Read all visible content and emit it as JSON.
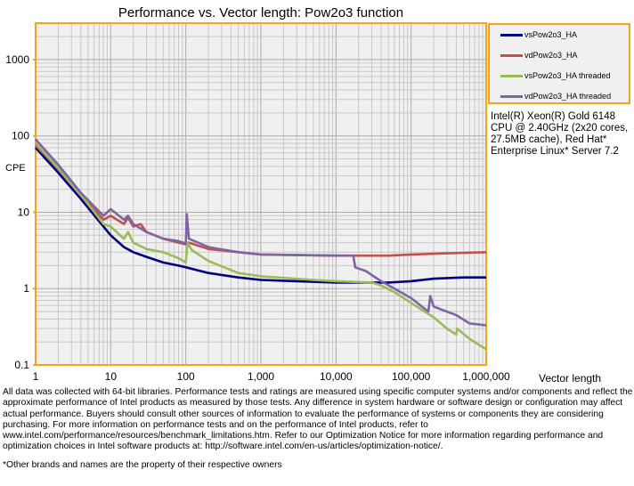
{
  "chart_data": {
    "type": "line",
    "title": "Performance vs. Vector length: Pow2o3  function",
    "xlabel": "Vector length",
    "ylabel": "CPE",
    "xscale": "log",
    "yscale": "log",
    "xlim": [
      1,
      1000000
    ],
    "ylim": [
      0.1,
      3000
    ],
    "grid": true,
    "legend_position": "right",
    "x_ticks": [
      "1",
      "10",
      "100",
      "1,000",
      "10,000",
      "100,000",
      "1,000,000"
    ],
    "y_ticks": [
      "0.1",
      "1",
      "10",
      "100",
      "1000"
    ],
    "series": [
      {
        "name": "vsPow2o3_HA",
        "color": "#000080",
        "points": [
          [
            1,
            70
          ],
          [
            2,
            33
          ],
          [
            4,
            15
          ],
          [
            8,
            6.5
          ],
          [
            10,
            5.0
          ],
          [
            15,
            3.5
          ],
          [
            20,
            3.0
          ],
          [
            30,
            2.6
          ],
          [
            50,
            2.2
          ],
          [
            80,
            2.0
          ],
          [
            100,
            1.9
          ],
          [
            200,
            1.6
          ],
          [
            500,
            1.4
          ],
          [
            1000,
            1.3
          ],
          [
            3000,
            1.25
          ],
          [
            10000,
            1.2
          ],
          [
            30000,
            1.2
          ],
          [
            50000,
            1.2
          ],
          [
            100000,
            1.25
          ],
          [
            200000,
            1.35
          ],
          [
            500000,
            1.4
          ],
          [
            1000000,
            1.4
          ]
        ]
      },
      {
        "name": "vdPow2o3_HA",
        "color": "#c0504d",
        "points": [
          [
            1,
            75
          ],
          [
            2,
            37
          ],
          [
            4,
            17
          ],
          [
            8,
            8
          ],
          [
            10,
            9
          ],
          [
            15,
            7
          ],
          [
            17,
            8.5
          ],
          [
            20,
            6.5
          ],
          [
            25,
            7
          ],
          [
            30,
            5.5
          ],
          [
            50,
            4.5
          ],
          [
            80,
            4
          ],
          [
            100,
            3.8
          ],
          [
            110,
            4
          ],
          [
            200,
            3.3
          ],
          [
            500,
            3
          ],
          [
            1000,
            2.8
          ],
          [
            10000,
            2.7
          ],
          [
            50000,
            2.7
          ],
          [
            100000,
            2.8
          ],
          [
            300000,
            2.9
          ],
          [
            1000000,
            3.0
          ]
        ]
      },
      {
        "name": "vsPow2o3_HA threaded",
        "color": "#9bbb59",
        "points": [
          [
            1,
            80
          ],
          [
            2,
            38
          ],
          [
            4,
            17
          ],
          [
            8,
            7
          ],
          [
            10,
            6.5
          ],
          [
            15,
            4.5
          ],
          [
            17,
            5.5
          ],
          [
            20,
            4.0
          ],
          [
            30,
            3.3
          ],
          [
            50,
            3.0
          ],
          [
            80,
            2.5
          ],
          [
            100,
            2.2
          ],
          [
            105,
            4
          ],
          [
            120,
            3.2
          ],
          [
            200,
            2.3
          ],
          [
            500,
            1.6
          ],
          [
            1000,
            1.45
          ],
          [
            5000,
            1.3
          ],
          [
            10000,
            1.25
          ],
          [
            30000,
            1.2
          ],
          [
            40000,
            1.1
          ],
          [
            60000,
            0.9
          ],
          [
            100000,
            0.65
          ],
          [
            200000,
            0.42
          ],
          [
            300000,
            0.3
          ],
          [
            400000,
            0.25
          ],
          [
            410000,
            0.3
          ],
          [
            600000,
            0.22
          ],
          [
            1000000,
            0.16
          ]
        ]
      },
      {
        "name": "vdPow2o3_HA threaded",
        "color": "#8064a2",
        "points": [
          [
            1,
            90
          ],
          [
            2,
            42
          ],
          [
            4,
            18
          ],
          [
            8,
            9
          ],
          [
            10,
            11
          ],
          [
            15,
            8
          ],
          [
            17,
            9
          ],
          [
            20,
            7
          ],
          [
            30,
            5.5
          ],
          [
            50,
            4.5
          ],
          [
            80,
            4.2
          ],
          [
            100,
            3.9
          ],
          [
            103,
            9.5
          ],
          [
            110,
            4.5
          ],
          [
            200,
            3.5
          ],
          [
            500,
            3.0
          ],
          [
            1000,
            2.8
          ],
          [
            10000,
            2.7
          ],
          [
            17000,
            2.7
          ],
          [
            18000,
            1.9
          ],
          [
            25000,
            1.7
          ],
          [
            30000,
            1.5
          ],
          [
            40000,
            1.25
          ],
          [
            60000,
            1.0
          ],
          [
            100000,
            0.75
          ],
          [
            170000,
            0.5
          ],
          [
            180000,
            0.8
          ],
          [
            200000,
            0.58
          ],
          [
            400000,
            0.45
          ],
          [
            600000,
            0.35
          ],
          [
            1000000,
            0.33
          ]
        ]
      }
    ]
  },
  "info": "Intel(R) Xeon(R) Gold 6148 CPU @ 2.40GHz (2x20 cores, 27.5MB cache), Red Hat* Enterprise Linux* Server 7.2",
  "footnote": "All data was collected with 64-bit libraries. Performance tests and ratings are measured using specific computer systems and/or components and reflect the approximate performance of Intel products as measured by those tests. Any difference in system hardware or software design or configuration may affect actual performance. Buyers should consult other sources of information to evaluate the performance of systems or components they are considering purchasing. For more information on performance tests and on the performance of Intel products, refer to www.intel.com/performance/resources/benchmark_limitations.htm.  Refer to our Optimization Notice for more information regarding performance and optimization choices in Intel software products at: http://software.intel.com/en-us/articles/optimization-notice/.",
  "footnote2": "*Other brands and names are the property of their respective owners",
  "colors": {
    "frame": "#f7a21b",
    "plot_bg": "#f0f0f0",
    "grid": "#c8c8c8"
  }
}
